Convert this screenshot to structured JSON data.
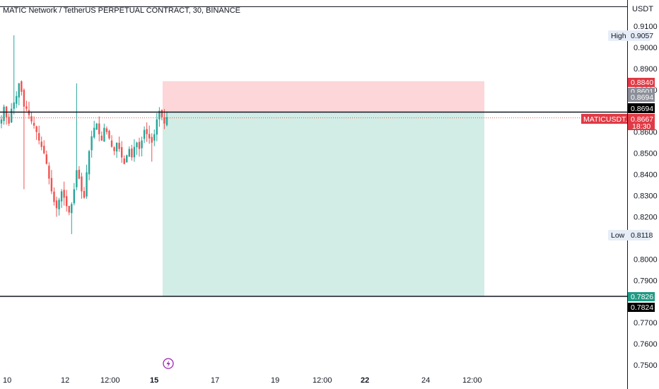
{
  "header": {
    "title": "MATIC Network / TetherUS PERPETUAL CONTRACT, 30, BINANCE",
    "currency": "USDT"
  },
  "colors": {
    "up": "#26a69a",
    "down": "#ef5350",
    "stop_zone": "#fcd6d8",
    "target_zone": "#d2ece6",
    "tag_red": "#e03a45",
    "tag_black": "#000000",
    "tag_gray": "#8c8f99",
    "tag_teal": "#1f9a84",
    "highlow_bg": "#e6edf7",
    "dotted_price_line": "#ef5350"
  },
  "chart_data": {
    "type": "candlestick",
    "title": "MATIC Network / TetherUS PERPETUAL CONTRACT, 30, BINANCE",
    "ylabel": "USDT",
    "ylim": [
      0.744,
      0.918
    ],
    "y_ticks": [
      "0.9100",
      "0.9000",
      "0.8900",
      "0.8800",
      "0.8600",
      "0.8500",
      "0.8400",
      "0.8300",
      "0.8200",
      "0.8000",
      "0.7900",
      "0.7700",
      "0.7600",
      "0.7500"
    ],
    "x_ticks": [
      {
        "label": "10",
        "bold": false
      },
      {
        "label": "12",
        "bold": false
      },
      {
        "label": "12:00",
        "bold": false
      },
      {
        "label": "15",
        "bold": true
      },
      {
        "label": "17",
        "bold": false
      },
      {
        "label": "19",
        "bold": false
      },
      {
        "label": "12:00",
        "bold": false
      },
      {
        "label": "22",
        "bold": true
      },
      {
        "label": "24",
        "bold": false
      },
      {
        "label": "12:00",
        "bold": false
      }
    ],
    "series_close": [
      0.866,
      0.872,
      0.867,
      0.864,
      0.871,
      0.874,
      0.877,
      0.883,
      0.879,
      0.872,
      0.871,
      0.868,
      0.865,
      0.863,
      0.86,
      0.856,
      0.853,
      0.85,
      0.845,
      0.838,
      0.832,
      0.827,
      0.824,
      0.828,
      0.832,
      0.829,
      0.825,
      0.822,
      0.826,
      0.833,
      0.842,
      0.838,
      0.832,
      0.829,
      0.841,
      0.851,
      0.858,
      0.862,
      0.864,
      0.859,
      0.856,
      0.862,
      0.86,
      0.857,
      0.853,
      0.851,
      0.855,
      0.852,
      0.848,
      0.845,
      0.849,
      0.852,
      0.848,
      0.853,
      0.855,
      0.852,
      0.856,
      0.861,
      0.859,
      0.857,
      0.855,
      0.859,
      0.866,
      0.87,
      0.867,
      0.864,
      0.867
    ],
    "summary": {
      "high": "0.9057",
      "low": "0.8118",
      "last": "0.8667",
      "countdown": "18:30"
    },
    "position": {
      "type": "long",
      "entry": 0.8694,
      "stop": 0.884,
      "target": 0.7826,
      "entry_label": "0.8694",
      "stop_label": "0.8840",
      "target_label": "0.7826"
    },
    "horizontal_lines": [
      {
        "value": 0.8694,
        "label": "0.8694"
      },
      {
        "value": 0.7824,
        "label": "0.7824"
      }
    ],
    "price_tags": [
      {
        "label": "0.8694",
        "style": "gray",
        "value": 0.8694
      },
      {
        "label": "0.8601",
        "style": "gray-partial",
        "value": 0.8601
      }
    ],
    "symbol_tag": "MATICUSDT.P"
  }
}
